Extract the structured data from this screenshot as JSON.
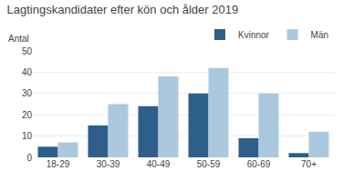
{
  "chart_data": {
    "type": "bar",
    "title": "Lagtingskandidater efter kön och ålder 2019",
    "ylabel": "Antal",
    "categories": [
      "18-29",
      "30-39",
      "40-49",
      "50-59",
      "60-69",
      "70+"
    ],
    "series": [
      {
        "name": "Kvinnor",
        "color": "#2e5f8a",
        "values": [
          5,
          15,
          24,
          30,
          9,
          2
        ]
      },
      {
        "name": "Män",
        "color": "#aac8de",
        "values": [
          7,
          25,
          38,
          42,
          30,
          12
        ]
      }
    ],
    "ylim": [
      0,
      50
    ],
    "yticks": [
      0,
      10,
      20,
      30,
      40,
      50
    ],
    "grid": true,
    "legend": "upper right"
  }
}
